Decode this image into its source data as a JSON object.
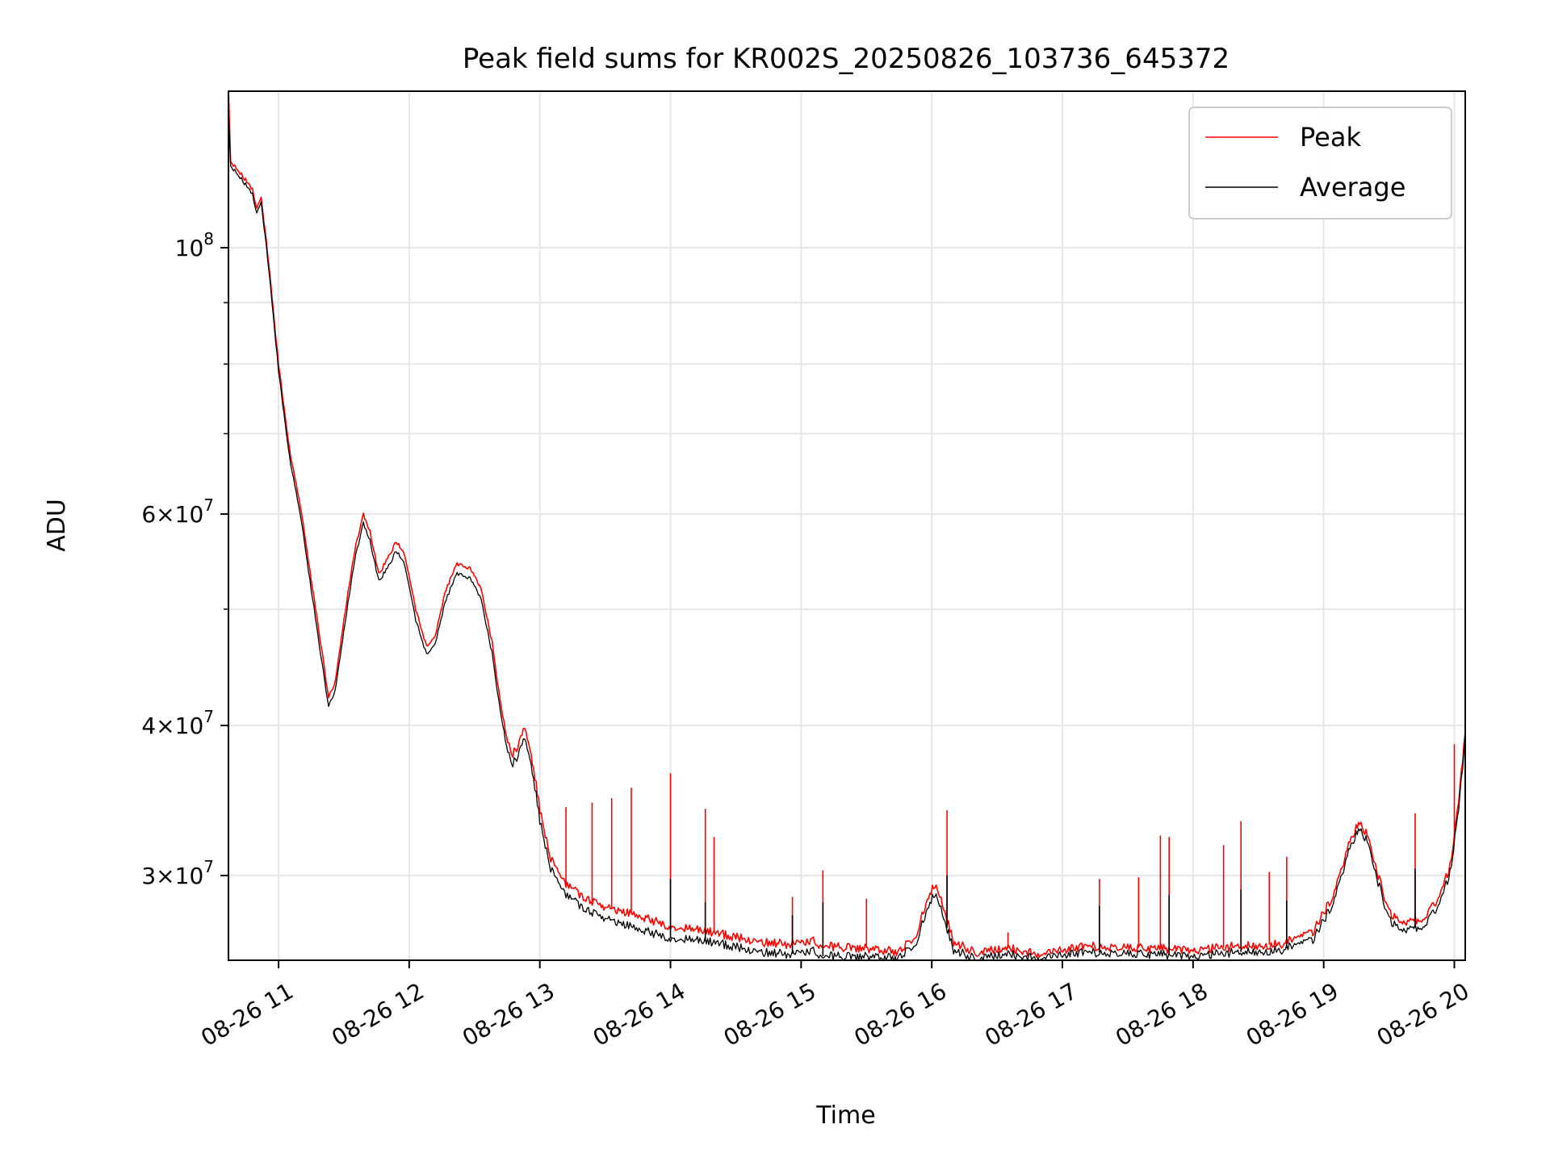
{
  "chart_data": {
    "type": "line",
    "title": "Peak field sums for KR002S_20250826_103736_645372",
    "xlabel": "Time",
    "ylabel": "ADU",
    "y_scale": "log",
    "xlim": [
      "2025-08-26 10:37",
      "2025-08-26 20:05"
    ],
    "ylim": [
      25500000,
      135000000
    ],
    "grid": true,
    "legend_position": "top-right",
    "x_ticks": [
      {
        "value": "2025-08-26 11:00",
        "label": "08-26 11"
      },
      {
        "value": "2025-08-26 12:00",
        "label": "08-26 12"
      },
      {
        "value": "2025-08-26 13:00",
        "label": "08-26 13"
      },
      {
        "value": "2025-08-26 14:00",
        "label": "08-26 14"
      },
      {
        "value": "2025-08-26 15:00",
        "label": "08-26 15"
      },
      {
        "value": "2025-08-26 16:00",
        "label": "08-26 16"
      },
      {
        "value": "2025-08-26 17:00",
        "label": "08-26 17"
      },
      {
        "value": "2025-08-26 18:00",
        "label": "08-26 18"
      },
      {
        "value": "2025-08-26 19:00",
        "label": "08-26 19"
      },
      {
        "value": "2025-08-26 20:00",
        "label": "08-26 20"
      }
    ],
    "y_ticks": [
      {
        "value": 30000000,
        "base": "3",
        "exp": "7"
      },
      {
        "value": 40000000,
        "base": "4",
        "exp": "7"
      },
      {
        "value": 60000000,
        "base": "6",
        "exp": "7"
      },
      {
        "value": 100000000,
        "base": "",
        "exp": "8"
      }
    ],
    "y_minor_ticks": [
      50000000,
      70000000,
      80000000,
      90000000
    ],
    "series": [
      {
        "name": "Peak",
        "color": "#ff0000",
        "points": [
          [
            "2025-08-26 10:37",
            135000000
          ],
          [
            "2025-08-26 10:38",
            118000000
          ],
          [
            "2025-08-26 10:43",
            115000000
          ],
          [
            "2025-08-26 10:48",
            112000000
          ],
          [
            "2025-08-26 10:50",
            108000000
          ],
          [
            "2025-08-26 10:52",
            110000000
          ],
          [
            "2025-08-26 10:55",
            99000000
          ],
          [
            "2025-08-26 11:00",
            80000000
          ],
          [
            "2025-08-26 11:05",
            68000000
          ],
          [
            "2025-08-26 11:10",
            61000000
          ],
          [
            "2025-08-26 11:15",
            53000000
          ],
          [
            "2025-08-26 11:20",
            46000000
          ],
          [
            "2025-08-26 11:23",
            42200000
          ],
          [
            "2025-08-26 11:26",
            43500000
          ],
          [
            "2025-08-26 11:30",
            49000000
          ],
          [
            "2025-08-26 11:35",
            56000000
          ],
          [
            "2025-08-26 11:39",
            60000000
          ],
          [
            "2025-08-26 11:42",
            58000000
          ],
          [
            "2025-08-26 11:46",
            53500000
          ],
          [
            "2025-08-26 11:50",
            55000000
          ],
          [
            "2025-08-26 11:54",
            57000000
          ],
          [
            "2025-08-26 11:58",
            55500000
          ],
          [
            "2025-08-26 12:03",
            50000000
          ],
          [
            "2025-08-26 12:08",
            46500000
          ],
          [
            "2025-08-26 12:12",
            47500000
          ],
          [
            "2025-08-26 12:17",
            52000000
          ],
          [
            "2025-08-26 12:22",
            54500000
          ],
          [
            "2025-08-26 12:28",
            54000000
          ],
          [
            "2025-08-26 12:33",
            52000000
          ],
          [
            "2025-08-26 12:38",
            47000000
          ],
          [
            "2025-08-26 12:43",
            40500000
          ],
          [
            "2025-08-26 12:47",
            37800000
          ],
          [
            "2025-08-26 12:50",
            38500000
          ],
          [
            "2025-08-26 12:53",
            40000000
          ],
          [
            "2025-08-26 12:56",
            38000000
          ],
          [
            "2025-08-26 13:00",
            34000000
          ],
          [
            "2025-08-26 13:05",
            31000000
          ],
          [
            "2025-08-26 13:12",
            29500000
          ],
          [
            "2025-08-26 13:20",
            28800000
          ],
          [
            "2025-08-26 13:30",
            28200000
          ],
          [
            "2025-08-26 13:45",
            27800000
          ],
          [
            "2025-08-26 14:00",
            27200000
          ],
          [
            "2025-08-26 14:20",
            26900000
          ],
          [
            "2025-08-26 14:40",
            26400000
          ],
          [
            "2025-08-26 14:55",
            26300000
          ],
          [
            "2025-08-26 15:05",
            26500000
          ],
          [
            "2025-08-26 15:10",
            26200000
          ],
          [
            "2025-08-26 15:30",
            26100000
          ],
          [
            "2025-08-26 15:45",
            25900000
          ],
          [
            "2025-08-26 15:53",
            26800000
          ],
          [
            "2025-08-26 15:58",
            28700000
          ],
          [
            "2025-08-26 16:02",
            29600000
          ],
          [
            "2025-08-26 16:06",
            28000000
          ],
          [
            "2025-08-26 16:10",
            26400000
          ],
          [
            "2025-08-26 16:20",
            25900000
          ],
          [
            "2025-08-26 16:35",
            26100000
          ],
          [
            "2025-08-26 16:50",
            25800000
          ],
          [
            "2025-08-26 17:10",
            26200000
          ],
          [
            "2025-08-26 17:40",
            26100000
          ],
          [
            "2025-08-26 18:00",
            26000000
          ],
          [
            "2025-08-26 18:20",
            26200000
          ],
          [
            "2025-08-26 18:40",
            26300000
          ],
          [
            "2025-08-26 18:55",
            26900000
          ],
          [
            "2025-08-26 19:05",
            29000000
          ],
          [
            "2025-08-26 19:12",
            32000000
          ],
          [
            "2025-08-26 19:16",
            33300000
          ],
          [
            "2025-08-26 19:20",
            32500000
          ],
          [
            "2025-08-26 19:25",
            30000000
          ],
          [
            "2025-08-26 19:30",
            28000000
          ],
          [
            "2025-08-26 19:35",
            27400000
          ],
          [
            "2025-08-26 19:45",
            27600000
          ],
          [
            "2025-08-26 19:52",
            28500000
          ],
          [
            "2025-08-26 19:58",
            30500000
          ],
          [
            "2025-08-26 20:02",
            34500000
          ],
          [
            "2025-08-26 20:05",
            39500000
          ]
        ],
        "spikes": [
          [
            "2025-08-26 13:12",
            34200000
          ],
          [
            "2025-08-26 13:24",
            34500000
          ],
          [
            "2025-08-26 13:33",
            34800000
          ],
          [
            "2025-08-26 13:42",
            35500000
          ],
          [
            "2025-08-26 14:00",
            36500000
          ],
          [
            "2025-08-26 14:16",
            34100000
          ],
          [
            "2025-08-26 14:20",
            32300000
          ],
          [
            "2025-08-26 14:56",
            28800000
          ],
          [
            "2025-08-26 15:10",
            30300000
          ],
          [
            "2025-08-26 15:30",
            28700000
          ],
          [
            "2025-08-26 16:07",
            34000000
          ],
          [
            "2025-08-26 16:35",
            26900000
          ],
          [
            "2025-08-26 17:17",
            29800000
          ],
          [
            "2025-08-26 17:35",
            29900000
          ],
          [
            "2025-08-26 17:45",
            32400000
          ],
          [
            "2025-08-26 17:49",
            32300000
          ],
          [
            "2025-08-26 18:14",
            31800000
          ],
          [
            "2025-08-26 18:22",
            33300000
          ],
          [
            "2025-08-26 18:35",
            30200000
          ],
          [
            "2025-08-26 18:43",
            31100000
          ],
          [
            "2025-08-26 19:42",
            33800000
          ],
          [
            "2025-08-26 20:00",
            38600000
          ]
        ]
      },
      {
        "name": "Average",
        "color": "#000000",
        "points": [
          [
            "2025-08-26 10:37",
            130000000
          ],
          [
            "2025-08-26 10:38",
            117000000
          ],
          [
            "2025-08-26 10:43",
            114000000
          ],
          [
            "2025-08-26 10:48",
            111000000
          ],
          [
            "2025-08-26 10:50",
            107000000
          ],
          [
            "2025-08-26 10:52",
            109000000
          ],
          [
            "2025-08-26 10:55",
            98000000
          ],
          [
            "2025-08-26 11:00",
            79000000
          ],
          [
            "2025-08-26 11:05",
            67000000
          ],
          [
            "2025-08-26 11:10",
            60000000
          ],
          [
            "2025-08-26 11:15",
            52000000
          ],
          [
            "2025-08-26 11:20",
            45000000
          ],
          [
            "2025-08-26 11:23",
            41500000
          ],
          [
            "2025-08-26 11:26",
            42800000
          ],
          [
            "2025-08-26 11:30",
            48000000
          ],
          [
            "2025-08-26 11:35",
            55000000
          ],
          [
            "2025-08-26 11:39",
            59000000
          ],
          [
            "2025-08-26 11:42",
            57000000
          ],
          [
            "2025-08-26 11:46",
            52800000
          ],
          [
            "2025-08-26 11:50",
            54000000
          ],
          [
            "2025-08-26 11:54",
            56000000
          ],
          [
            "2025-08-26 11:58",
            54500000
          ],
          [
            "2025-08-26 12:03",
            49000000
          ],
          [
            "2025-08-26 12:08",
            45800000
          ],
          [
            "2025-08-26 12:12",
            46800000
          ],
          [
            "2025-08-26 12:17",
            51000000
          ],
          [
            "2025-08-26 12:22",
            53500000
          ],
          [
            "2025-08-26 12:28",
            53000000
          ],
          [
            "2025-08-26 12:33",
            51000000
          ],
          [
            "2025-08-26 12:38",
            46000000
          ],
          [
            "2025-08-26 12:43",
            39800000
          ],
          [
            "2025-08-26 12:47",
            37100000
          ],
          [
            "2025-08-26 12:50",
            37800000
          ],
          [
            "2025-08-26 12:53",
            39200000
          ],
          [
            "2025-08-26 12:56",
            37300000
          ],
          [
            "2025-08-26 13:00",
            33300000
          ],
          [
            "2025-08-26 13:05",
            30400000
          ],
          [
            "2025-08-26 13:12",
            28900000
          ],
          [
            "2025-08-26 13:20",
            28200000
          ],
          [
            "2025-08-26 13:30",
            27600000
          ],
          [
            "2025-08-26 13:45",
            27100000
          ],
          [
            "2025-08-26 14:00",
            26600000
          ],
          [
            "2025-08-26 14:20",
            26400000
          ],
          [
            "2025-08-26 14:40",
            25900000
          ],
          [
            "2025-08-26 14:55",
            25800000
          ],
          [
            "2025-08-26 15:05",
            26000000
          ],
          [
            "2025-08-26 15:10",
            25700000
          ],
          [
            "2025-08-26 15:30",
            25700000
          ],
          [
            "2025-08-26 15:45",
            25600000
          ],
          [
            "2025-08-26 15:53",
            26400000
          ],
          [
            "2025-08-26 15:58",
            28200000
          ],
          [
            "2025-08-26 16:02",
            29100000
          ],
          [
            "2025-08-26 16:06",
            27500000
          ],
          [
            "2025-08-26 16:10",
            26000000
          ],
          [
            "2025-08-26 16:20",
            25600000
          ],
          [
            "2025-08-26 16:35",
            25800000
          ],
          [
            "2025-08-26 16:50",
            25600000
          ],
          [
            "2025-08-26 17:10",
            25900000
          ],
          [
            "2025-08-26 17:40",
            25800000
          ],
          [
            "2025-08-26 18:00",
            25700000
          ],
          [
            "2025-08-26 18:20",
            25900000
          ],
          [
            "2025-08-26 18:40",
            26000000
          ],
          [
            "2025-08-26 18:55",
            26500000
          ],
          [
            "2025-08-26 19:05",
            28600000
          ],
          [
            "2025-08-26 19:12",
            31600000
          ],
          [
            "2025-08-26 19:16",
            32900000
          ],
          [
            "2025-08-26 19:20",
            32100000
          ],
          [
            "2025-08-26 19:25",
            29600000
          ],
          [
            "2025-08-26 19:30",
            27600000
          ],
          [
            "2025-08-26 19:35",
            27000000
          ],
          [
            "2025-08-26 19:45",
            27200000
          ],
          [
            "2025-08-26 19:52",
            28100000
          ],
          [
            "2025-08-26 19:58",
            30100000
          ],
          [
            "2025-08-26 20:02",
            34000000
          ],
          [
            "2025-08-26 20:05",
            39000000
          ]
        ],
        "spikes": [
          [
            "2025-08-26 14:00",
            29800000
          ],
          [
            "2025-08-26 14:16",
            28500000
          ],
          [
            "2025-08-26 14:56",
            27800000
          ],
          [
            "2025-08-26 15:10",
            28500000
          ],
          [
            "2025-08-26 16:07",
            30000000
          ],
          [
            "2025-08-26 17:17",
            28300000
          ],
          [
            "2025-08-26 17:49",
            28900000
          ],
          [
            "2025-08-26 18:22",
            29200000
          ],
          [
            "2025-08-26 18:43",
            28600000
          ],
          [
            "2025-08-26 19:42",
            30400000
          ]
        ]
      }
    ]
  }
}
